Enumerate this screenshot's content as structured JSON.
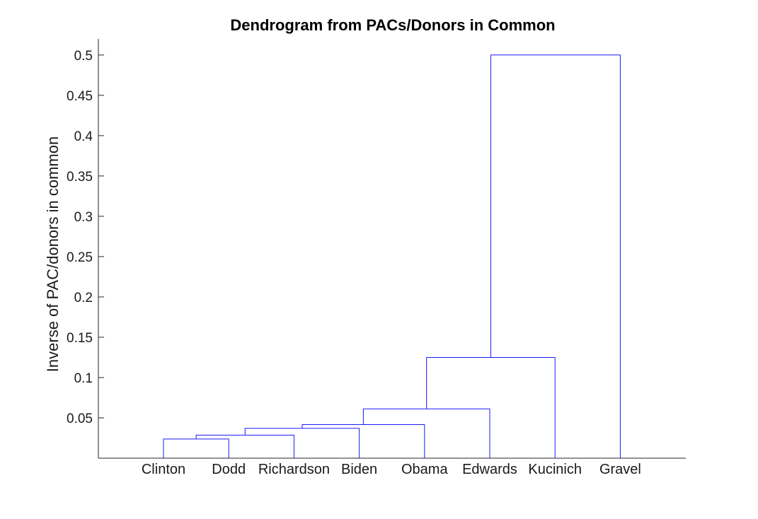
{
  "chart_data": {
    "type": "dendrogram",
    "title": "Dendrogram from PACs/Donors in Common",
    "ylabel": "Inverse of PAC/donors in common",
    "xlabel": "",
    "ylim": [
      0,
      0.52
    ],
    "yticks": [
      0.05,
      0.1,
      0.15,
      0.2,
      0.25,
      0.3,
      0.35,
      0.4,
      0.45,
      0.5
    ],
    "ytick_labels": [
      "0.05",
      "0.1",
      "0.15",
      "0.2",
      "0.25",
      "0.3",
      "0.35",
      "0.4",
      "0.45",
      "0.5"
    ],
    "leaves": [
      "Clinton",
      "Dodd",
      "Richardson",
      "Biden",
      "Obama",
      "Edwards",
      "Kucinich",
      "Gravel"
    ],
    "leaf_height": 0,
    "merges": [
      {
        "left": "Clinton",
        "right": "Dodd",
        "height": 0.0238
      },
      {
        "left": "Clinton+Dodd",
        "right": "Richardson",
        "height": 0.0286
      },
      {
        "left": "Clinton+Dodd+Richardson",
        "right": "Biden",
        "height": 0.037
      },
      {
        "left": "Clinton+Dodd+Richardson+Biden",
        "right": "Obama",
        "height": 0.0417
      },
      {
        "left": "Clinton+Dodd+Richardson+Biden+Obama",
        "right": "Edwards",
        "height": 0.0612
      },
      {
        "left": "Clinton+Dodd+Richardson+Biden+Obama+Edwards",
        "right": "Kucinich",
        "height": 0.125
      },
      {
        "left": "Clinton+Dodd+Richardson+Biden+Obama+Edwards+Kucinich",
        "right": "Gravel",
        "height": 0.5
      }
    ],
    "link_color": "#1a1aff",
    "axis_color": "#262626",
    "grid": false,
    "legend": "none"
  }
}
